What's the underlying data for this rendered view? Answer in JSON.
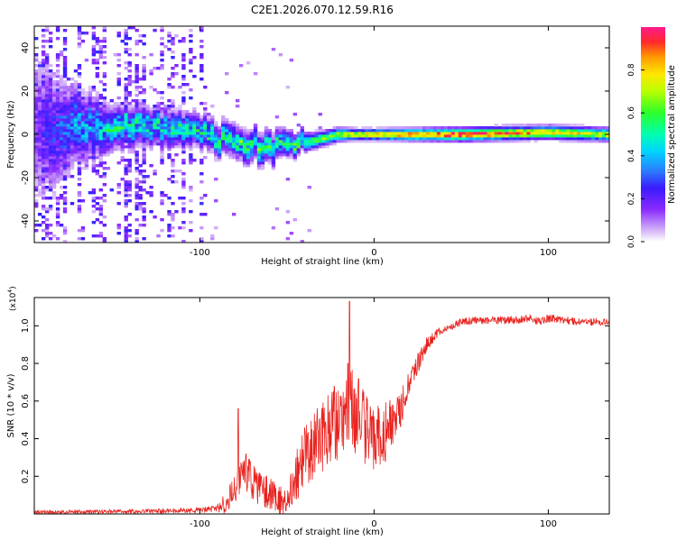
{
  "title": "C2E1.2026.070.12.59.R16",
  "colors": {
    "axis": "#000000",
    "snr_line": "#e8231f",
    "background": "#ffffff",
    "colormap": [
      "#ffffff",
      "#c9a6f5",
      "#7a1cff",
      "#2a1aff",
      "#00c8ff",
      "#22ff8a",
      "#9cff00",
      "#ffe400",
      "#ff9a00",
      "#ff2a2a",
      "#ff1a8c"
    ]
  },
  "chart_data": [
    {
      "type": "heatmap",
      "name": "spectrogram",
      "title": "C2E1.2026.070.12.59.R16",
      "xlabel": "Height of straight line (km)",
      "ylabel": "Frequency (Hz)",
      "xlim": [
        -195,
        135
      ],
      "ylim": [
        -50,
        50
      ],
      "xticks": [
        -100,
        0,
        100
      ],
      "yticks": [
        -40,
        -20,
        0,
        20,
        40
      ],
      "colorbar": {
        "label": "Normalized spectral amplitude",
        "range": [
          0,
          1
        ],
        "ticks": [
          "0.0",
          "0.2",
          "0.4",
          "0.6",
          "0.8"
        ]
      },
      "ridge": [
        {
          "x": -195,
          "f": 2,
          "width": 60,
          "amp": 0.15
        },
        {
          "x": -170,
          "f": 3,
          "width": 28,
          "amp": 0.35
        },
        {
          "x": -150,
          "f": 4,
          "width": 16,
          "amp": 0.45
        },
        {
          "x": -120,
          "f": 3,
          "width": 14,
          "amp": 0.45
        },
        {
          "x": -100,
          "f": 1,
          "width": 12,
          "amp": 0.45
        },
        {
          "x": -80,
          "f": -4,
          "width": 12,
          "amp": 0.5
        },
        {
          "x": -60,
          "f": -6,
          "width": 12,
          "amp": 0.5
        },
        {
          "x": -50,
          "f": -5,
          "width": 10,
          "amp": 0.5
        },
        {
          "x": -35,
          "f": -3,
          "width": 6,
          "amp": 0.6
        },
        {
          "x": -20,
          "f": 0,
          "width": 5,
          "amp": 0.7
        },
        {
          "x": -10,
          "f": 0,
          "width": 4,
          "amp": 0.75
        },
        {
          "x": 0,
          "f": 0,
          "width": 4,
          "amp": 0.85
        },
        {
          "x": 50,
          "f": 0,
          "width": 5,
          "amp": 0.95
        },
        {
          "x": 100,
          "f": 1,
          "width": 5,
          "amp": 0.8
        },
        {
          "x": 135,
          "f": 0,
          "width": 5,
          "amp": 0.7
        }
      ]
    },
    {
      "type": "line",
      "name": "snr",
      "xlabel": "Height of straight line (km)",
      "ylabel": "SNR (10 * v/v)",
      "multiplier": "(x10^4)",
      "multiplier_base": "(x10",
      "multiplier_exp": "4",
      "multiplier_close": ")",
      "xlim": [
        -195,
        135
      ],
      "ylim": [
        0,
        1.15
      ],
      "xticks": [
        -100,
        0,
        100
      ],
      "yticks": [
        "0.2",
        "0.4",
        "0.6",
        "0.8",
        "1.0"
      ],
      "envelope": {
        "x": [
          -195,
          -130,
          -100,
          -90,
          -85,
          -80,
          -77,
          -75,
          -72,
          -68,
          -62,
          -55,
          -52,
          -50,
          -45,
          -40,
          -35,
          -30,
          -25,
          -20,
          -15,
          -12,
          -10,
          -5,
          0,
          5,
          10,
          15,
          20,
          25,
          30,
          35,
          40,
          45,
          50,
          60,
          80,
          90,
          95,
          100,
          110,
          120,
          135
        ],
        "y": [
          0.01,
          0.015,
          0.02,
          0.03,
          0.06,
          0.12,
          0.2,
          0.25,
          0.2,
          0.15,
          0.12,
          0.08,
          0.06,
          0.08,
          0.2,
          0.3,
          0.35,
          0.4,
          0.45,
          0.5,
          0.48,
          0.55,
          0.5,
          0.45,
          0.4,
          0.42,
          0.46,
          0.55,
          0.7,
          0.8,
          0.9,
          0.95,
          0.98,
          1.0,
          1.02,
          1.03,
          1.03,
          1.04,
          1.02,
          1.04,
          1.03,
          1.02,
          1.02
        ]
      },
      "noise_amplitude": {
        "x": [
          -195,
          -130,
          -100,
          -90,
          -85,
          -75,
          -55,
          -50,
          -40,
          -20,
          -12,
          0,
          10,
          20,
          30,
          40,
          135
        ],
        "y": [
          0.01,
          0.012,
          0.015,
          0.02,
          0.06,
          0.1,
          0.08,
          0.08,
          0.18,
          0.22,
          0.25,
          0.18,
          0.15,
          0.08,
          0.04,
          0.02,
          0.02
        ]
      },
      "spikes": [
        {
          "x": -78,
          "y": 0.56
        },
        {
          "x": -15,
          "y": 0.8
        },
        {
          "x": -14,
          "y": 1.13
        },
        {
          "x": -9,
          "y": 0.72
        }
      ]
    }
  ]
}
